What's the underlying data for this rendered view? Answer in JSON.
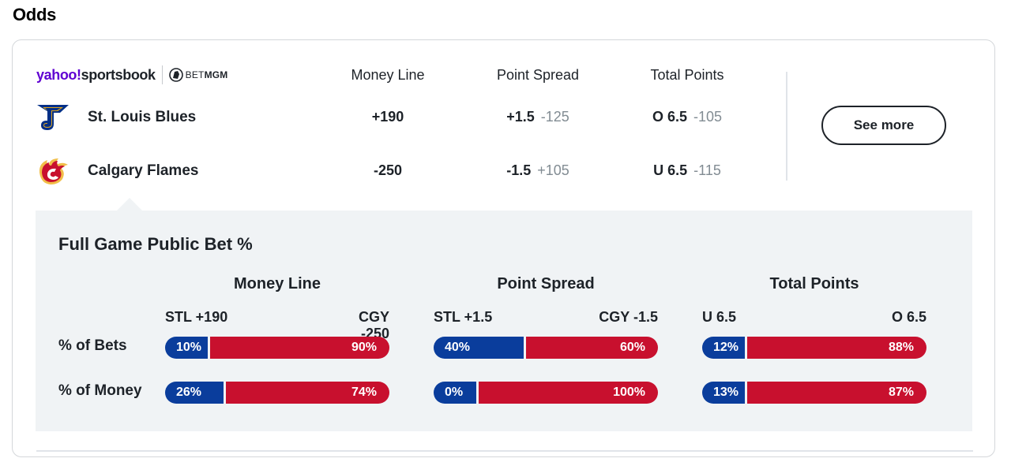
{
  "section_title": "Odds",
  "brand": {
    "yahoo": "yahoo!",
    "sportsbook": "sportsbook",
    "betmgm_a": "BET",
    "betmgm_b": "MGM"
  },
  "columns": {
    "money_line": "Money Line",
    "point_spread": "Point Spread",
    "total_points": "Total Points"
  },
  "teams": [
    {
      "name": "St. Louis Blues",
      "money_line": "+190",
      "spread": "+1.5",
      "spread_odds": "-125",
      "total": "O 6.5",
      "total_odds": "-105",
      "logo_icon": "st-louis-blues-logo-icon",
      "color": "#002f87"
    },
    {
      "name": "Calgary Flames",
      "money_line": "-250",
      "spread": "-1.5",
      "spread_odds": "+105",
      "total": "U 6.5",
      "total_odds": "-115",
      "logo_icon": "calgary-flames-logo-icon",
      "color": "#c8102e"
    }
  ],
  "see_more": "See more",
  "public_bets": {
    "title": "Full Game Public Bet %",
    "row_labels": {
      "bets": "% of Bets",
      "money": "% of Money"
    },
    "groups": [
      {
        "title": "Money Line",
        "left": "STL +190",
        "right": "CGY -250",
        "bets": {
          "left": 10,
          "right": 90,
          "left_label": "10%",
          "right_label": "90%"
        },
        "money": {
          "left": 26,
          "right": 74,
          "left_label": "26%",
          "right_label": "74%"
        }
      },
      {
        "title": "Point Spread",
        "left": "STL +1.5",
        "right": "CGY -1.5",
        "bets": {
          "left": 40,
          "right": 60,
          "left_label": "40%",
          "right_label": "60%"
        },
        "money": {
          "left": 0,
          "right": 100,
          "left_label": "0%",
          "right_label": "100%"
        }
      },
      {
        "title": "Total Points",
        "left": "U 6.5",
        "right": "O 6.5",
        "bets": {
          "left": 12,
          "right": 88,
          "left_label": "12%",
          "right_label": "88%"
        },
        "money": {
          "left": 13,
          "right": 87,
          "left_label": "13%",
          "right_label": "87%"
        }
      }
    ]
  },
  "colors": {
    "blue": "#0a3d9c",
    "red": "#c8102e",
    "yahoo_purple": "#6001d2",
    "panel_bg": "#f0f3f5"
  }
}
